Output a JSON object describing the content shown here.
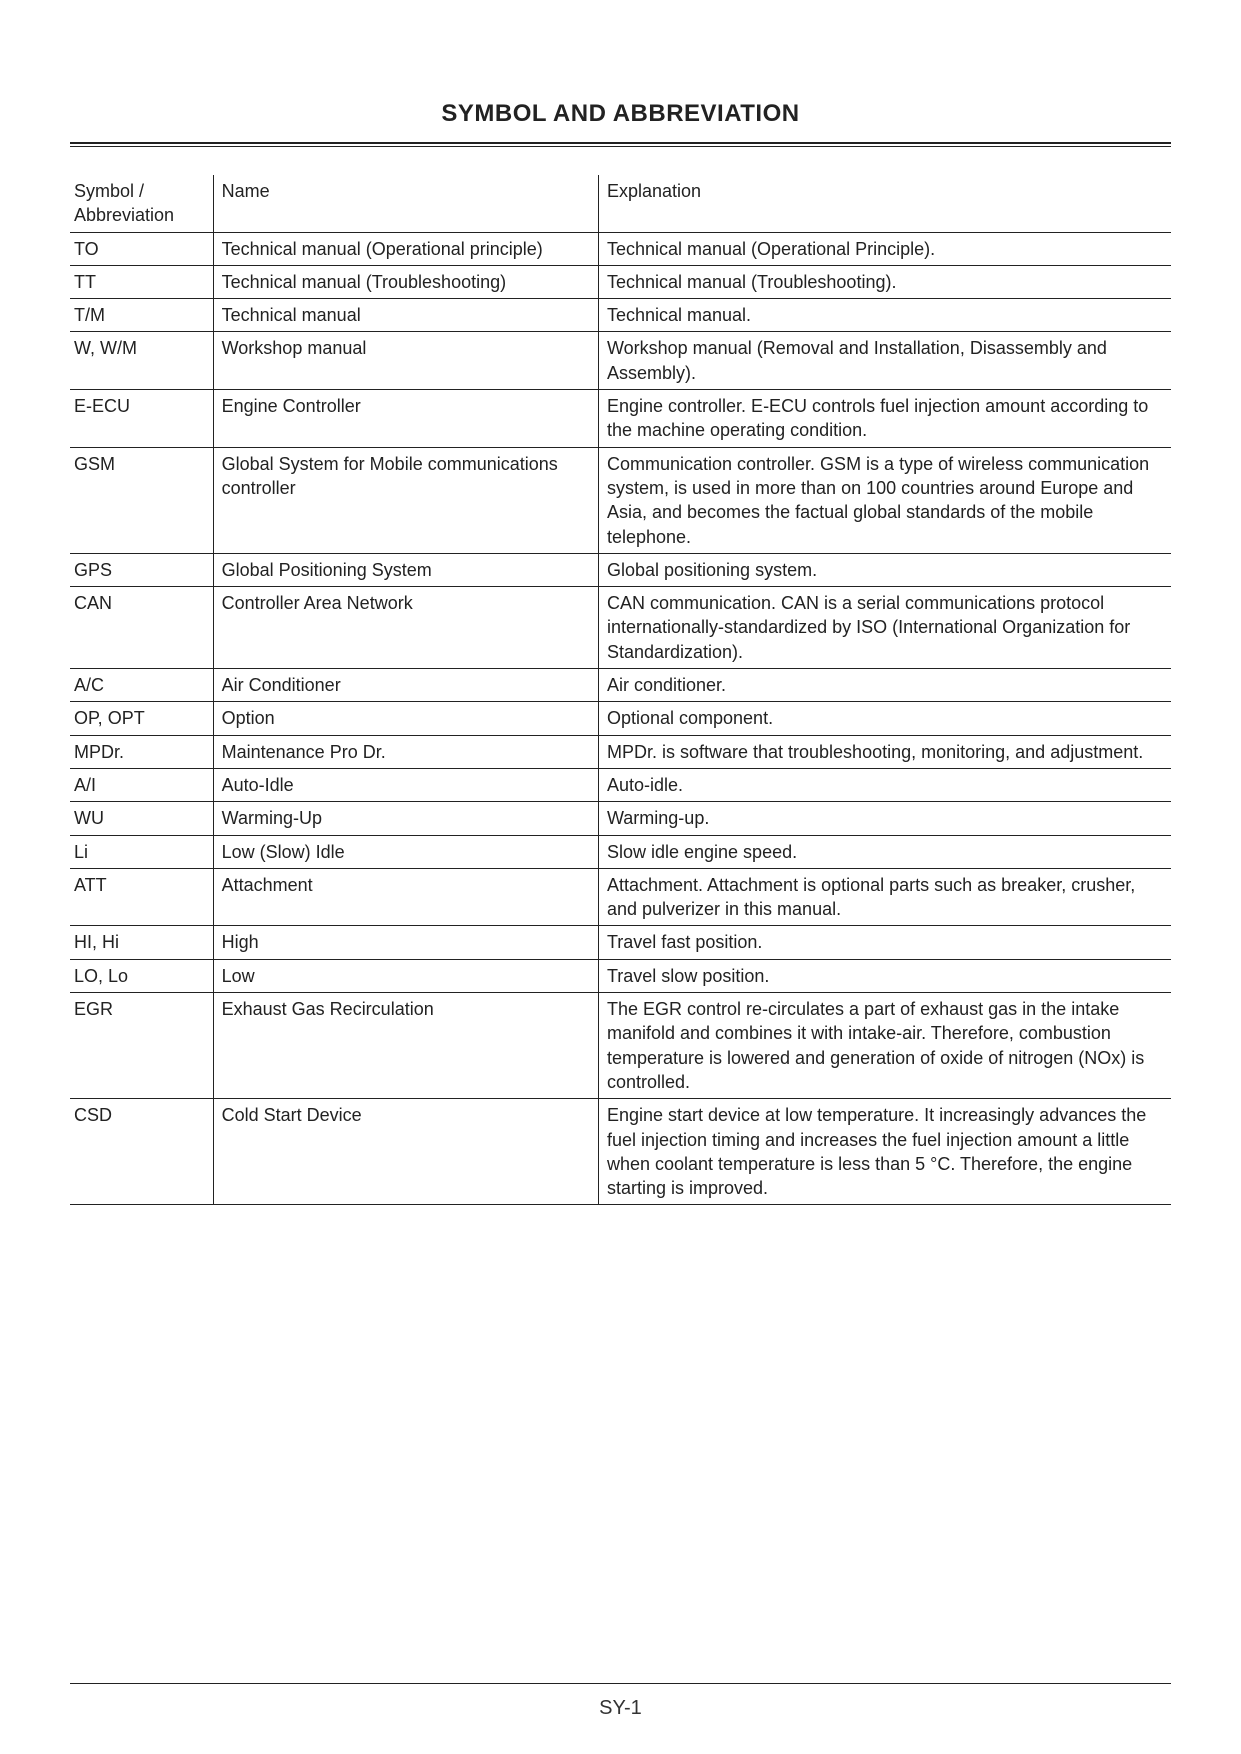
{
  "title": "SYMBOL AND ABBREVIATION",
  "columns": [
    "Symbol / Abbreviation",
    "Name",
    "Explanation"
  ],
  "rows": [
    {
      "sym": "TO",
      "name": "Technical manual (Operational principle)",
      "expl": "Technical manual (Operational Principle)."
    },
    {
      "sym": "TT",
      "name": "Technical manual (Troubleshooting)",
      "expl": "Technical manual (Troubleshooting)."
    },
    {
      "sym": "T/M",
      "name": "Technical manual",
      "expl": "Technical manual."
    },
    {
      "sym": "W, W/M",
      "name": "Workshop manual",
      "expl": "Workshop manual (Removal and Installation, Disassembly and Assembly)."
    },
    {
      "sym": "E-ECU",
      "name": "Engine Controller",
      "expl": "Engine controller. E-ECU controls fuel injection amount according to the machine operating condition."
    },
    {
      "sym": "GSM",
      "name": "Global System for Mobile communications controller",
      "expl": "Communication controller. GSM is a type of wireless communication system, is used in more than on 100 countries around Europe and Asia, and becomes the factual global standards of the mobile telephone."
    },
    {
      "sym": "GPS",
      "name": "Global Positioning System",
      "expl": "Global positioning system."
    },
    {
      "sym": "CAN",
      "name": "Controller Area Network",
      "expl": "CAN communication. CAN is a serial communications protocol internationally-standardized by ISO (International Organization for Standardization)."
    },
    {
      "sym": "A/C",
      "name": "Air Conditioner",
      "expl": "Air conditioner."
    },
    {
      "sym": "OP, OPT",
      "name": "Option",
      "expl": "Optional component."
    },
    {
      "sym": "MPDr.",
      "name": "Maintenance Pro Dr.",
      "expl": "MPDr. is software that troubleshooting, monitoring, and adjustment."
    },
    {
      "sym": "A/I",
      "name": "Auto-Idle",
      "expl": "Auto-idle."
    },
    {
      "sym": "WU",
      "name": "Warming-Up",
      "expl": "Warming-up."
    },
    {
      "sym": "Li",
      "name": "Low (Slow) Idle",
      "expl": "Slow idle engine speed."
    },
    {
      "sym": "ATT",
      "name": "Attachment",
      "expl": "Attachment. Attachment is optional parts such as breaker, crusher, and pulverizer in this manual."
    },
    {
      "sym": "HI, Hi",
      "name": "High",
      "expl": "Travel fast position."
    },
    {
      "sym": "LO, Lo",
      "name": "Low",
      "expl": "Travel slow position."
    },
    {
      "sym": "EGR",
      "name": "Exhaust Gas Recirculation",
      "expl": "The EGR control re-circulates a part of exhaust gas in the intake manifold and combines it with intake-air. Therefore, combustion temperature is lowered and generation of oxide of nitrogen (NOx) is controlled."
    },
    {
      "sym": "CSD",
      "name": "Cold Start Device",
      "expl": "Engine start device at low temperature. It increasingly advances the fuel injection timing and increases the fuel injection amount a little when coolant temperature is less than 5 °C. Therefore, the engine starting is improved."
    }
  ],
  "page_number": "SY-1"
}
